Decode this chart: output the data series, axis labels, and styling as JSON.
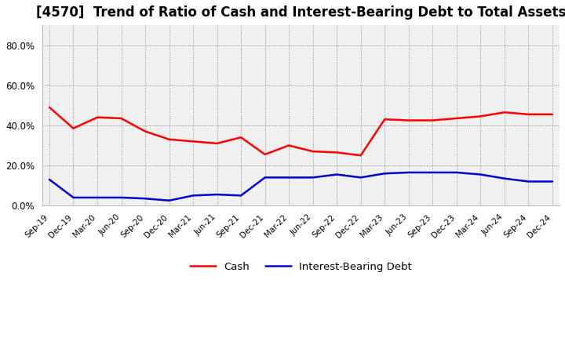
{
  "title": "[4570]  Trend of Ratio of Cash and Interest-Bearing Debt to Total Assets",
  "x_labels": [
    "Sep-19",
    "Dec-19",
    "Mar-20",
    "Jun-20",
    "Sep-20",
    "Dec-20",
    "Mar-21",
    "Jun-21",
    "Sep-21",
    "Dec-21",
    "Mar-22",
    "Jun-22",
    "Sep-22",
    "Dec-22",
    "Mar-23",
    "Jun-23",
    "Sep-23",
    "Dec-23",
    "Mar-24",
    "Jun-24",
    "Sep-24",
    "Dec-24"
  ],
  "cash": [
    0.49,
    0.385,
    0.44,
    0.435,
    0.37,
    0.33,
    0.32,
    0.31,
    0.34,
    0.255,
    0.3,
    0.27,
    0.265,
    0.25,
    0.43,
    0.425,
    0.425,
    0.435,
    0.445,
    0.465,
    0.455,
    0.455
  ],
  "ibd": [
    0.13,
    0.04,
    0.04,
    0.04,
    0.035,
    0.025,
    0.05,
    0.055,
    0.05,
    0.14,
    0.14,
    0.14,
    0.155,
    0.14,
    0.16,
    0.165,
    0.165,
    0.165,
    0.155,
    0.135,
    0.12,
    0.12
  ],
  "cash_color": "#ff0000",
  "ibd_color": "#0000cc",
  "ylim": [
    0.0,
    0.9
  ],
  "yticks": [
    0.0,
    0.2,
    0.4,
    0.6,
    0.8
  ],
  "grid_color": "#888888",
  "bg_color": "#f0f0f0",
  "fig_bg": "#ffffff",
  "title_fontsize": 12,
  "legend_labels": [
    "Cash",
    "Interest-Bearing Debt"
  ],
  "line_width": 1.8
}
